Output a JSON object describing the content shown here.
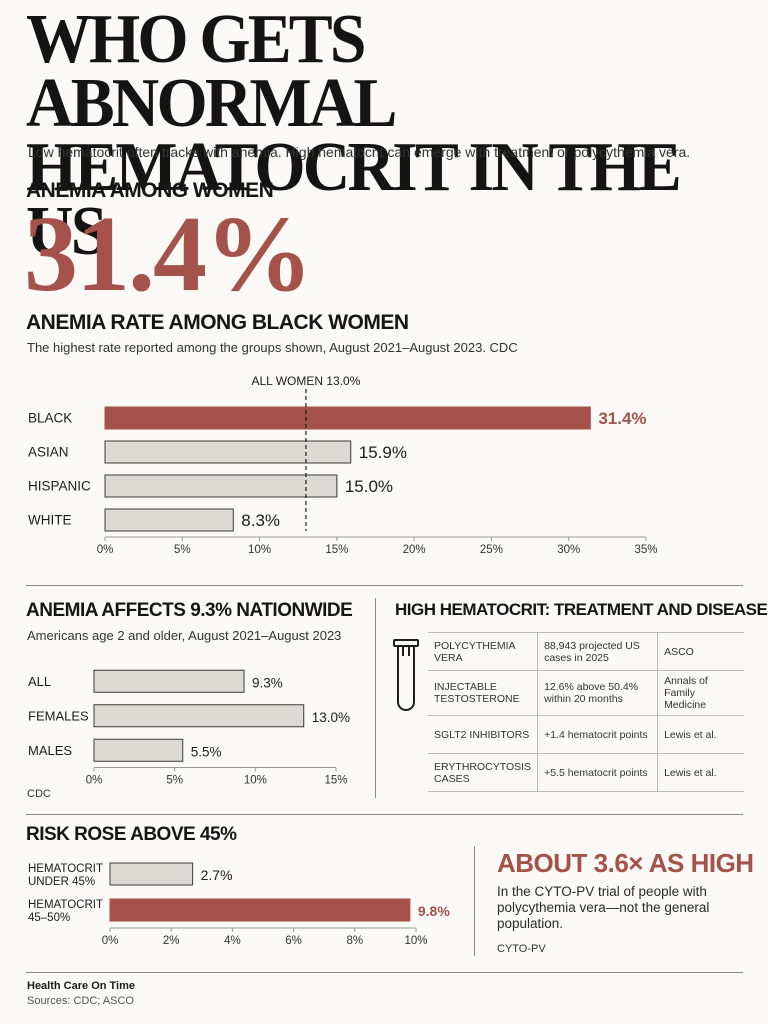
{
  "header": {
    "title_line1": "WHO GETS ABNORMAL",
    "title_line2": "HEMATOCRIT IN THE US",
    "subtitle": "Low hematocrit often tracks with anemia. High hematocrit can emerge with treatment or polycythemia vera."
  },
  "headline": {
    "kicker": "ANEMIA AMONG WOMEN",
    "big_value": "31.4%",
    "heading": "ANEMIA RATE AMONG BLACK WOMEN",
    "note": "The highest rate reported among the groups shown, August 2021–August 2023. CDC"
  },
  "nationwide": {
    "heading": "ANEMIA AFFECTS 9.3% NATIONWIDE",
    "note": "Americans age 2 and older, August 2021–August 2023",
    "source": "CDC"
  },
  "high_hct": {
    "heading": "HIGH HEMATOCRIT: TREATMENT AND DISEASE",
    "icon": "test-tube-icon",
    "rows": [
      {
        "cause": "POLYCYTHEMIA VERA",
        "value": "88,943 projected US cases in 2025",
        "source": "ASCO"
      },
      {
        "cause": "INJECTABLE TESTOSTERONE",
        "value": "12.6% above 50.4% within 20 months",
        "source": "Annals of Family Medicine"
      },
      {
        "cause": "SGLT2 INHIBITORS",
        "value": "+1.4 hematocrit points",
        "source": "Lewis et al."
      },
      {
        "cause": "ERYTHROCYTOSIS CASES",
        "value": "+5.5 hematocrit points",
        "source": "Lewis et al."
      }
    ]
  },
  "risk": {
    "heading": "RISK ROSE ABOVE 45%",
    "callout_title": "ABOUT 3.6× AS HIGH",
    "callout_text": "In the CYTO-PV trial of people with polycythemia vera—not the general population.",
    "callout_source": "CYTO-PV"
  },
  "footer": {
    "publisher": "Health Care On Time",
    "sources": "Sources: CDC; ASCO"
  },
  "colors": {
    "accent": "#a5524a",
    "bar_fill": "#dcdad4",
    "text": "#1d1d1d"
  },
  "chart_data": [
    {
      "type": "bar",
      "orientation": "horizontal",
      "categories": [
        "BLACK",
        "ASIAN",
        "HISPANIC",
        "WHITE"
      ],
      "values": [
        31.4,
        15.9,
        15.0,
        8.3
      ],
      "value_labels": [
        "31.4%",
        "15.9%",
        "15.0%",
        "8.3%"
      ],
      "highlight": [
        "BLACK"
      ],
      "reference_line": {
        "label": "ALL WOMEN  13.0%",
        "value": 13.0
      },
      "xlim": [
        0,
        35
      ],
      "ticks": [
        "0%",
        "5%",
        "10%",
        "15%",
        "20%",
        "25%",
        "30%",
        "35%"
      ],
      "tick_values": [
        0,
        5,
        10,
        15,
        20,
        25,
        30,
        35
      ]
    },
    {
      "type": "bar",
      "orientation": "horizontal",
      "categories": [
        "ALL",
        "FEMALES",
        "MALES"
      ],
      "values": [
        9.3,
        13.0,
        5.5
      ],
      "value_labels": [
        "9.3%",
        "13.0%",
        "5.5%"
      ],
      "xlim": [
        0,
        15
      ],
      "ticks": [
        "0%",
        "5%",
        "10%",
        "15%"
      ],
      "tick_values": [
        0,
        5,
        10,
        15
      ]
    },
    {
      "type": "bar",
      "orientation": "horizontal",
      "categories": [
        "HEMATOCRIT UNDER 45%",
        "HEMATOCRIT 45–50%"
      ],
      "category_lines": [
        [
          "HEMATOCRIT",
          "UNDER 45%"
        ],
        [
          "HEMATOCRIT",
          "45–50%"
        ]
      ],
      "values": [
        2.7,
        9.8
      ],
      "value_labels": [
        "2.7%",
        "9.8%"
      ],
      "highlight": [
        "HEMATOCRIT 45–50%"
      ],
      "xlim": [
        0,
        10
      ],
      "ticks": [
        "0%",
        "2%",
        "4%",
        "6%",
        "8%",
        "10%"
      ],
      "tick_values": [
        0,
        2,
        4,
        6,
        8,
        10
      ]
    }
  ]
}
